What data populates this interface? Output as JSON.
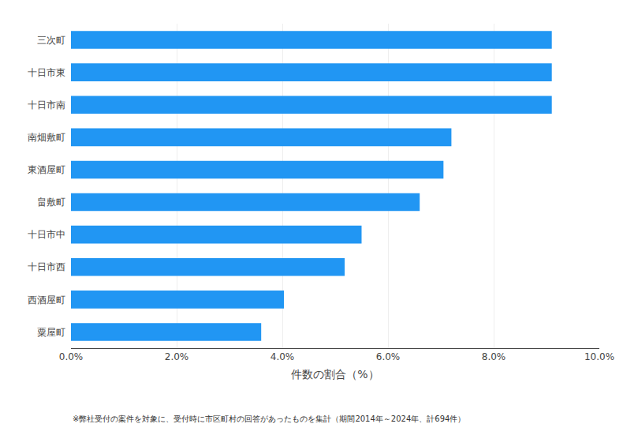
{
  "chart_data": {
    "type": "bar",
    "orientation": "horizontal",
    "categories": [
      "三次町",
      "十日市東",
      "十日市南",
      "南畑敷町",
      "東酒屋町",
      "畠敷町",
      "十日市中",
      "十日市西",
      "西酒屋町",
      "粟屋町"
    ],
    "values": [
      9.1,
      9.1,
      9.1,
      7.2,
      7.05,
      6.6,
      5.5,
      5.18,
      4.03,
      3.6
    ],
    "color": "#2196F3",
    "xlabel": "件数の割合（%）",
    "xlim": [
      0,
      10.0
    ],
    "xticks": [
      {
        "value": 0,
        "label": "0.0%"
      },
      {
        "value": 2,
        "label": "2.0%"
      },
      {
        "value": 4,
        "label": "4.0%"
      },
      {
        "value": 6,
        "label": "6.0%"
      },
      {
        "value": 8,
        "label": "8.0%"
      },
      {
        "value": 10,
        "label": "10.0%"
      }
    ],
    "grid": true,
    "annotations": [
      "※弊社受付の案件を対象に、受付時に市区町村の回答があったものを集計（期間2014年～2024年、計694件）"
    ]
  }
}
